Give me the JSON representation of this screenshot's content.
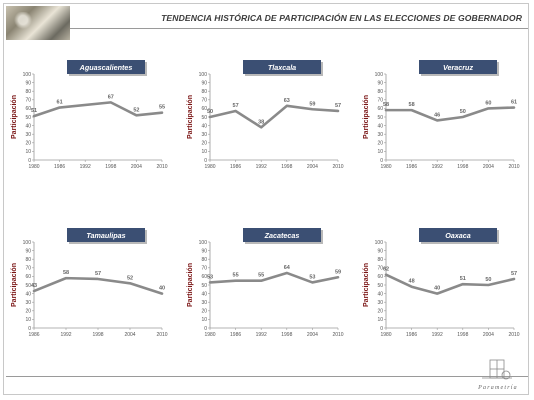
{
  "header": {
    "title": "TENDENCIA HISTÓRICA DE PARTICIPACIÓN EN LAS ELECCIONES DE GOBERNADOR"
  },
  "footer": {
    "logo_text": "Parametría"
  },
  "colors": {
    "line": "#8a8a8a",
    "label_bg": "#3b4f73",
    "axis_title": "#7a1414",
    "text": "#555555"
  },
  "chart_data": [
    {
      "type": "line",
      "title": "Aguascalientes",
      "ylabel": "Participación",
      "ylim": [
        0,
        100
      ],
      "yticks": [
        0,
        10,
        20,
        30,
        40,
        50,
        60,
        70,
        80,
        90,
        100
      ],
      "x": [
        "1980",
        "1986",
        "1992",
        "1998",
        "2004",
        "2010"
      ],
      "points": [
        {
          "x": "1980",
          "y": 51
        },
        {
          "x": "1986",
          "y": 61
        },
        {
          "x": "1998",
          "y": 67
        },
        {
          "x": "2004",
          "y": 52
        },
        {
          "x": "2010",
          "y": 55
        }
      ]
    },
    {
      "type": "line",
      "title": "Tlaxcala",
      "ylabel": "Participación",
      "ylim": [
        0,
        100
      ],
      "yticks": [
        0,
        10,
        20,
        30,
        40,
        50,
        60,
        70,
        80,
        90,
        100
      ],
      "x": [
        "1980",
        "1986",
        "1992",
        "1998",
        "2004",
        "2010"
      ],
      "points": [
        {
          "x": "1980",
          "y": 50
        },
        {
          "x": "1986",
          "y": 57
        },
        {
          "x": "1992",
          "y": 38
        },
        {
          "x": "1998",
          "y": 63
        },
        {
          "x": "2004",
          "y": 59
        },
        {
          "x": "2010",
          "y": 57
        }
      ]
    },
    {
      "type": "line",
      "title": "Veracruz",
      "ylabel": "Participación",
      "ylim": [
        0,
        100
      ],
      "yticks": [
        0,
        10,
        20,
        30,
        40,
        50,
        60,
        70,
        80,
        90,
        100
      ],
      "x": [
        "1980",
        "1986",
        "1992",
        "1998",
        "2004",
        "2010"
      ],
      "points": [
        {
          "x": "1980",
          "y": 58
        },
        {
          "x": "1986",
          "y": 58
        },
        {
          "x": "1992",
          "y": 46
        },
        {
          "x": "1998",
          "y": 50
        },
        {
          "x": "2004",
          "y": 60
        },
        {
          "x": "2010",
          "y": 61
        }
      ]
    },
    {
      "type": "line",
      "title": "Tamaulipas",
      "ylabel": "Participación",
      "ylim": [
        0,
        100
      ],
      "yticks": [
        0,
        10,
        20,
        30,
        40,
        50,
        60,
        70,
        80,
        90,
        100
      ],
      "x": [
        "1986",
        "1992",
        "1998",
        "2004",
        "2010"
      ],
      "points": [
        {
          "x": "1986",
          "y": 43
        },
        {
          "x": "1992",
          "y": 58
        },
        {
          "x": "1998",
          "y": 57
        },
        {
          "x": "2004",
          "y": 52
        },
        {
          "x": "2010",
          "y": 40
        }
      ]
    },
    {
      "type": "line",
      "title": "Zacatecas",
      "ylabel": "Participación",
      "ylim": [
        0,
        100
      ],
      "yticks": [
        0,
        10,
        20,
        30,
        40,
        50,
        60,
        70,
        80,
        90,
        100
      ],
      "x": [
        "1980",
        "1986",
        "1992",
        "1998",
        "2004",
        "2010"
      ],
      "points": [
        {
          "x": "1980",
          "y": 53
        },
        {
          "x": "1986",
          "y": 55
        },
        {
          "x": "1992",
          "y": 55
        },
        {
          "x": "1998",
          "y": 64
        },
        {
          "x": "2004",
          "y": 53
        },
        {
          "x": "2010",
          "y": 59
        }
      ]
    },
    {
      "type": "line",
      "title": "Oaxaca",
      "ylabel": "Participación",
      "ylim": [
        0,
        100
      ],
      "yticks": [
        0,
        10,
        20,
        30,
        40,
        50,
        60,
        70,
        80,
        90,
        100
      ],
      "x": [
        "1980",
        "1986",
        "1992",
        "1998",
        "2004",
        "2010"
      ],
      "points": [
        {
          "x": "1980",
          "y": 62
        },
        {
          "x": "1986",
          "y": 48
        },
        {
          "x": "1992",
          "y": 40
        },
        {
          "x": "1998",
          "y": 51
        },
        {
          "x": "2004",
          "y": 50
        },
        {
          "x": "2010",
          "y": 57
        }
      ]
    }
  ]
}
